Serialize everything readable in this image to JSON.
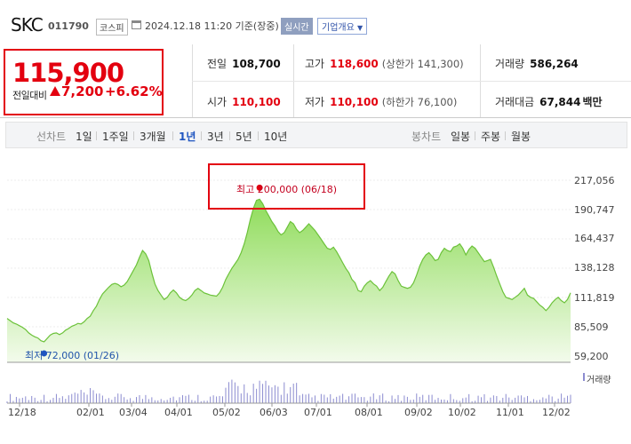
{
  "header": {
    "name": "SKC",
    "code": "011790",
    "market": "코스피",
    "datetime": "2024.12.18 11:20 기준(장중)",
    "live_label": "실시간",
    "info_label": "기업개요"
  },
  "price": {
    "current": "115,900",
    "change_label": "전일대비",
    "change": "7,200",
    "rate": "+6.62%",
    "color_up": "#e3000f"
  },
  "summary": {
    "prev_close": {
      "label": "전일",
      "value": "108,700"
    },
    "high": {
      "label": "고가",
      "value": "118,600",
      "limit": "(상한가 141,300)"
    },
    "volume": {
      "label": "거래량",
      "value": "586,264"
    },
    "open": {
      "label": "시가",
      "value": "110,100"
    },
    "low": {
      "label": "저가",
      "value": "110,100",
      "limit": "(하한가 76,100)"
    },
    "trade_value": {
      "label": "거래대금",
      "value": "67,844",
      "unit": "백만"
    }
  },
  "tabs": {
    "line_chart": "선차트",
    "periods": [
      "1일",
      "1주일",
      "3개월",
      "1년",
      "3년",
      "5년",
      "10년"
    ],
    "active_period": "1년",
    "candle_chart": "봉차트",
    "candles": [
      "일봉",
      "주봉",
      "월봉"
    ]
  },
  "chart_data": {
    "type": "area",
    "y_ticks": [
      "217,056",
      "190,747",
      "164,437",
      "138,128",
      "111,819",
      "85,509",
      "59,200"
    ],
    "ylim": [
      59200,
      217056
    ],
    "x_ticks": [
      "12/18",
      "02/01",
      "03/04",
      "04/01",
      "05/02",
      "06/03",
      "07/01",
      "08/01",
      "09/02",
      "10/02",
      "11/01",
      "12/02"
    ],
    "high_annotation": "최고 200,000 (06/18)",
    "low_annotation": "최저 72,000 (01/26)",
    "volume_label": "거래량",
    "values": [
      93000,
      91000,
      89000,
      88000,
      86500,
      85000,
      83000,
      80000,
      78000,
      76500,
      75500,
      73000,
      72000,
      75000,
      78000,
      79500,
      80000,
      78500,
      80000,
      82500,
      84000,
      86000,
      87000,
      88500,
      88000,
      90000,
      93000,
      95000,
      100000,
      104000,
      110000,
      115000,
      118000,
      121000,
      123500,
      124500,
      123500,
      121500,
      123000,
      126000,
      131000,
      136000,
      141000,
      148000,
      154000,
      151000,
      145000,
      134000,
      124000,
      118000,
      114000,
      110000,
      112000,
      116000,
      118500,
      116000,
      112000,
      110000,
      109000,
      111000,
      114000,
      118000,
      120000,
      118000,
      116000,
      115000,
      114000,
      113500,
      113000,
      116000,
      121000,
      128000,
      133000,
      138000,
      142000,
      146000,
      152000,
      160000,
      170000,
      182000,
      192000,
      199000,
      200000,
      196000,
      190000,
      185000,
      180000,
      176000,
      171000,
      168000,
      170000,
      175000,
      180000,
      178000,
      173000,
      170000,
      172000,
      175000,
      178000,
      175000,
      172000,
      168000,
      164000,
      160000,
      156000,
      155000,
      157000,
      153000,
      148000,
      143000,
      138000,
      134000,
      128000,
      125000,
      118000,
      117000,
      122000,
      125000,
      127000,
      124000,
      122000,
      118000,
      121000,
      126000,
      131000,
      135000,
      133000,
      127000,
      122000,
      121000,
      120000,
      121000,
      125000,
      132000,
      140000,
      146000,
      150000,
      152000,
      149000,
      145000,
      146000,
      152000,
      156000,
      154000,
      153000,
      157000,
      158000,
      160000,
      156000,
      150000,
      155000,
      158000,
      156000,
      152000,
      148000,
      144000,
      145000,
      146000,
      139000,
      131000,
      124000,
      117000,
      112000,
      111000,
      110000,
      112000,
      114000,
      117000,
      120000,
      114000,
      112000,
      111000,
      108000,
      105000,
      103000,
      100000,
      103000,
      107000,
      110000,
      112000,
      109000,
      107000,
      110000,
      116000
    ]
  }
}
